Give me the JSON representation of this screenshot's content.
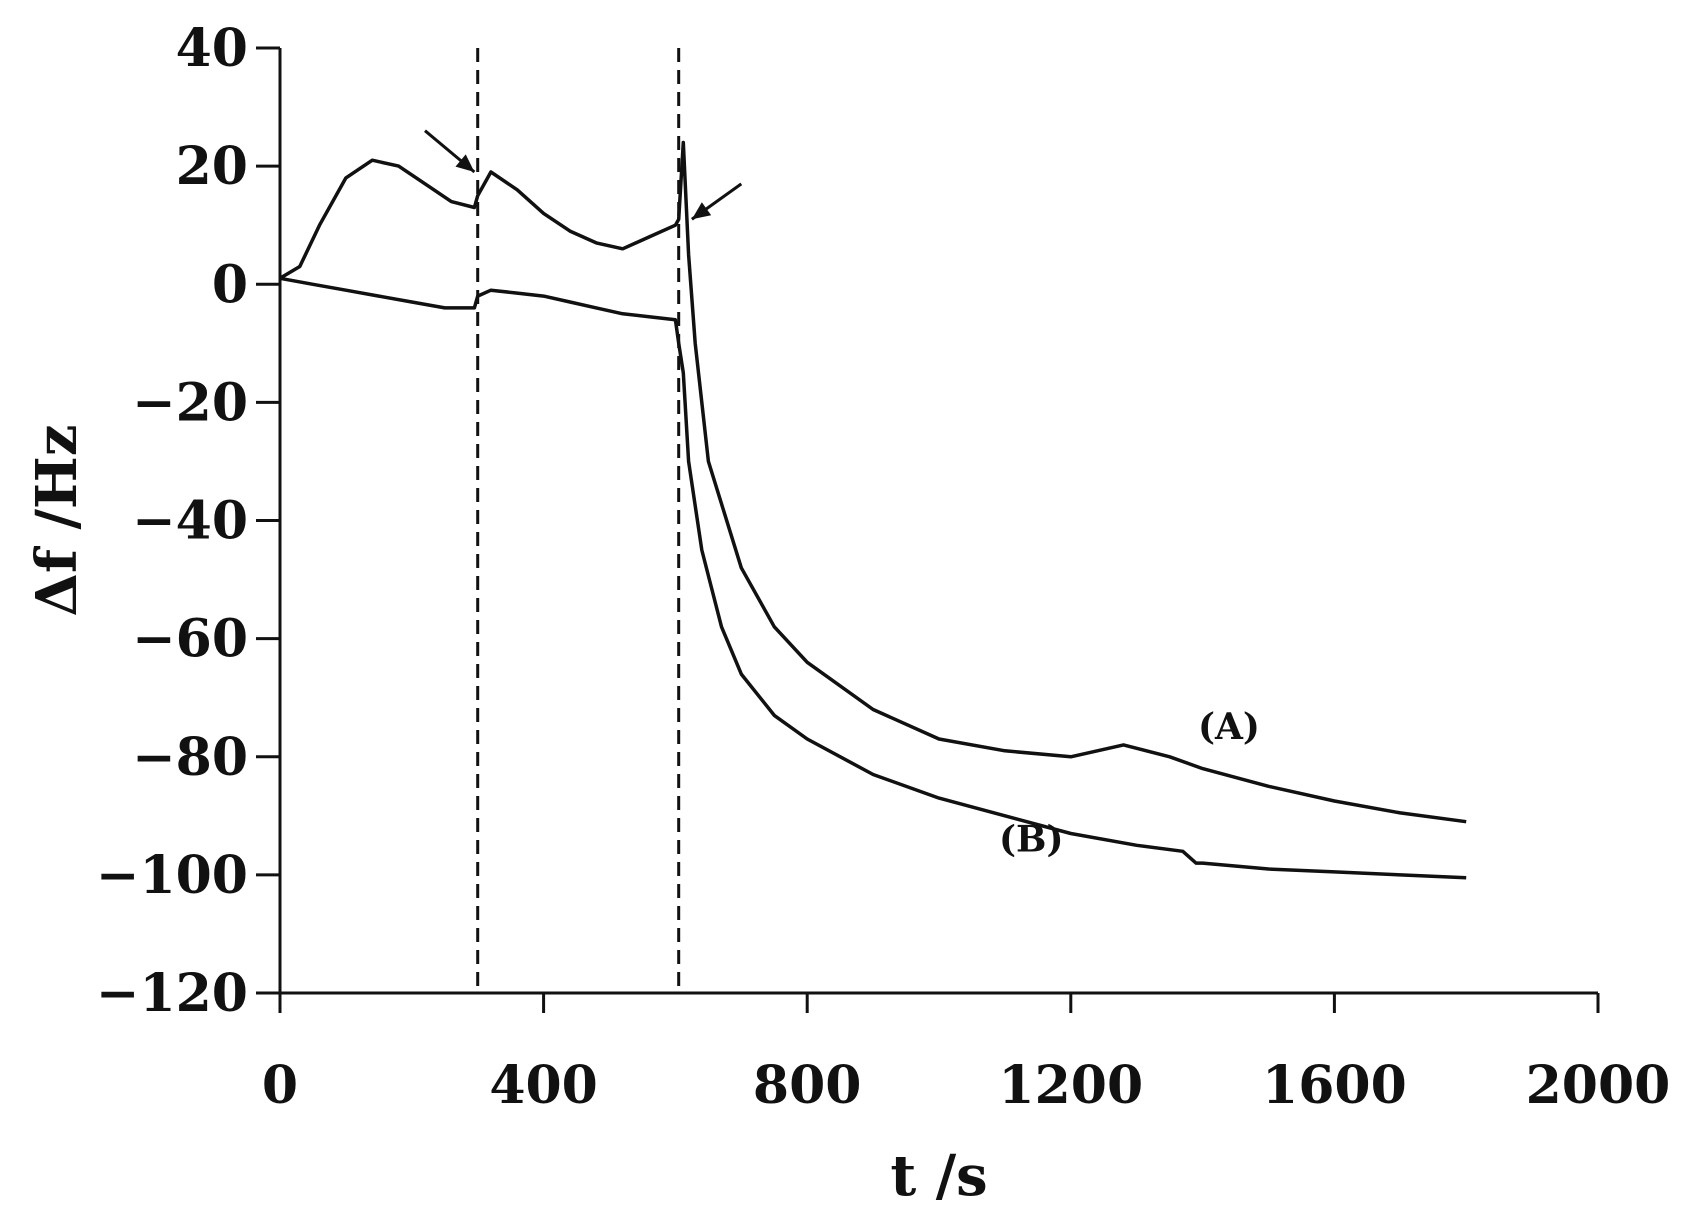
{
  "chart_data": {
    "type": "line",
    "title": "",
    "xlabel": "t /s",
    "ylabel": "Δf /Hz",
    "xlim": [
      0,
      2000
    ],
    "ylim": [
      -120,
      40
    ],
    "x_ticks": [
      0,
      400,
      800,
      1200,
      1600,
      2000
    ],
    "y_ticks": [
      40,
      20,
      0,
      -20,
      -40,
      -60,
      -80,
      -100,
      -120
    ],
    "x_tick_labels": [
      "0",
      "400",
      "800",
      "1200",
      "1600",
      "2000"
    ],
    "y_tick_labels": [
      "40",
      "20",
      "0",
      "−20",
      "−40",
      "−60",
      "−80",
      "−100",
      "−120"
    ],
    "grid": false,
    "vertical_markers": [
      300,
      605
    ],
    "arrows": [
      {
        "from": [
          220,
          26
        ],
        "to": [
          295,
          19
        ]
      },
      {
        "from": [
          700,
          17
        ],
        "to": [
          625,
          11
        ]
      }
    ],
    "series": [
      {
        "name": "(A)",
        "label_at": [
          1440,
          -77
        ],
        "x": [
          0,
          30,
          60,
          100,
          140,
          180,
          220,
          260,
          295,
          300,
          320,
          360,
          400,
          440,
          480,
          520,
          560,
          600,
          605,
          612,
          620,
          630,
          650,
          700,
          750,
          800,
          900,
          1000,
          1100,
          1200,
          1280,
          1350,
          1400,
          1500,
          1600,
          1700,
          1800
        ],
        "y": [
          1,
          3,
          10,
          18,
          21,
          20,
          17,
          14,
          13,
          15,
          19,
          16,
          12,
          9,
          7,
          6,
          8,
          10,
          11,
          24,
          5,
          -10,
          -30,
          -48,
          -58,
          -64,
          -72,
          -77,
          -79,
          -80,
          -78,
          -80,
          -82,
          -85,
          -87.5,
          -89.5,
          -91
        ]
      },
      {
        "name": "(B)",
        "label_at": [
          1140,
          -96
        ],
        "x": [
          0,
          50,
          100,
          150,
          200,
          250,
          295,
          300,
          320,
          360,
          400,
          440,
          480,
          520,
          560,
          600,
          605,
          612,
          620,
          640,
          670,
          700,
          750,
          800,
          900,
          1000,
          1100,
          1200,
          1300,
          1370,
          1390,
          1400,
          1500,
          1600,
          1700,
          1800
        ],
        "y": [
          1,
          0,
          -1,
          -2,
          -3,
          -4,
          -4,
          -2,
          -1,
          -1.5,
          -2,
          -3,
          -4,
          -5,
          -5.5,
          -6,
          -10,
          -15,
          -30,
          -45,
          -58,
          -66,
          -73,
          -77,
          -83,
          -87,
          -90,
          -93,
          -95,
          -96,
          -98,
          -98,
          -99,
          -99.5,
          -100,
          -100.5
        ]
      }
    ]
  }
}
